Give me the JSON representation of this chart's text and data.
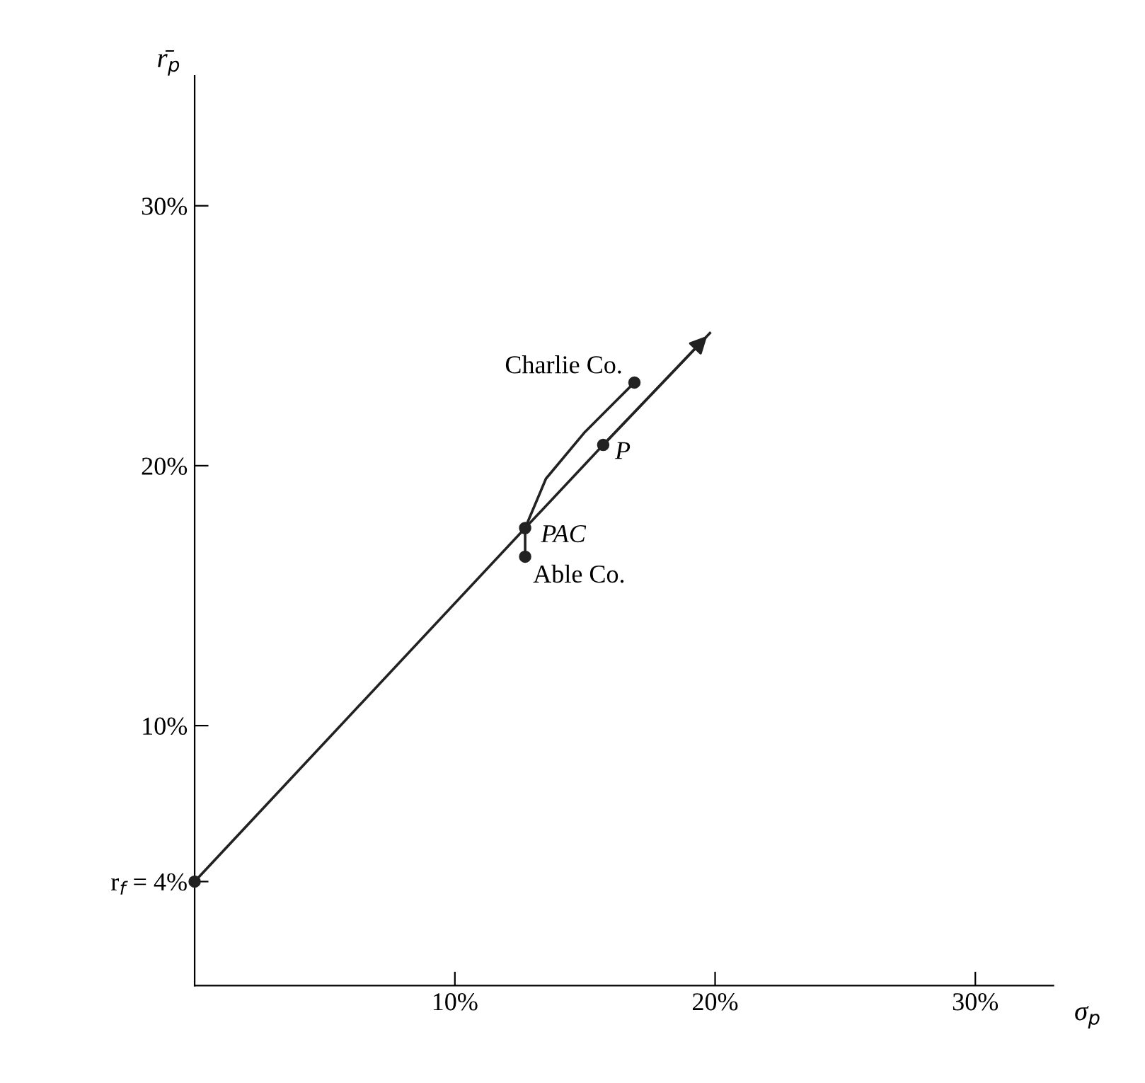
{
  "chart_data": {
    "type": "line",
    "xlabel": "σ$_{p}$",
    "ylabel": "r̄$_{p}$",
    "xlim": [
      0,
      33
    ],
    "ylim": [
      0,
      35
    ],
    "xticks": [
      {
        "value": 10,
        "label": "10%"
      },
      {
        "value": 20,
        "label": "20%"
      },
      {
        "value": 30,
        "label": "30%"
      }
    ],
    "yticks": [
      {
        "value": 4,
        "label": "r$_{f}$ = 4%"
      },
      {
        "value": 10,
        "label": "10%"
      },
      {
        "value": 20,
        "label": "20%"
      },
      {
        "value": 30,
        "label": "30%"
      }
    ],
    "grid": false,
    "legend": false,
    "series": [
      {
        "color": "#222222",
        "x": [
          0,
          12.7,
          15.7,
          19.8
        ],
        "values": [
          4,
          17.6,
          20.8,
          25.1
        ]
      },
      {
        "color": "#222222",
        "x": [
          12.7,
          12.7,
          13.5,
          15.0,
          16.1,
          16.9
        ],
        "values": [
          16.5,
          17.6,
          19.5,
          21.3,
          22.4,
          23.2
        ]
      },
      {
        "type": "scatter",
        "color": "#222222",
        "marker": "circle",
        "x": [
          0,
          12.7,
          12.7,
          15.7,
          16.9
        ],
        "values": [
          4,
          16.5,
          17.6,
          20.8,
          23.2
        ]
      }
    ],
    "annotations": [
      {
        "text": "Charlie Co.",
        "x": 16.9,
        "y": 23.2
      },
      {
        "text": "P",
        "x": 15.7,
        "y": 20.8
      },
      {
        "text": "PAC",
        "x": 12.7,
        "y": 17.6
      },
      {
        "text": "Able Co.",
        "x": 12.7,
        "y": 16.5
      }
    ]
  }
}
